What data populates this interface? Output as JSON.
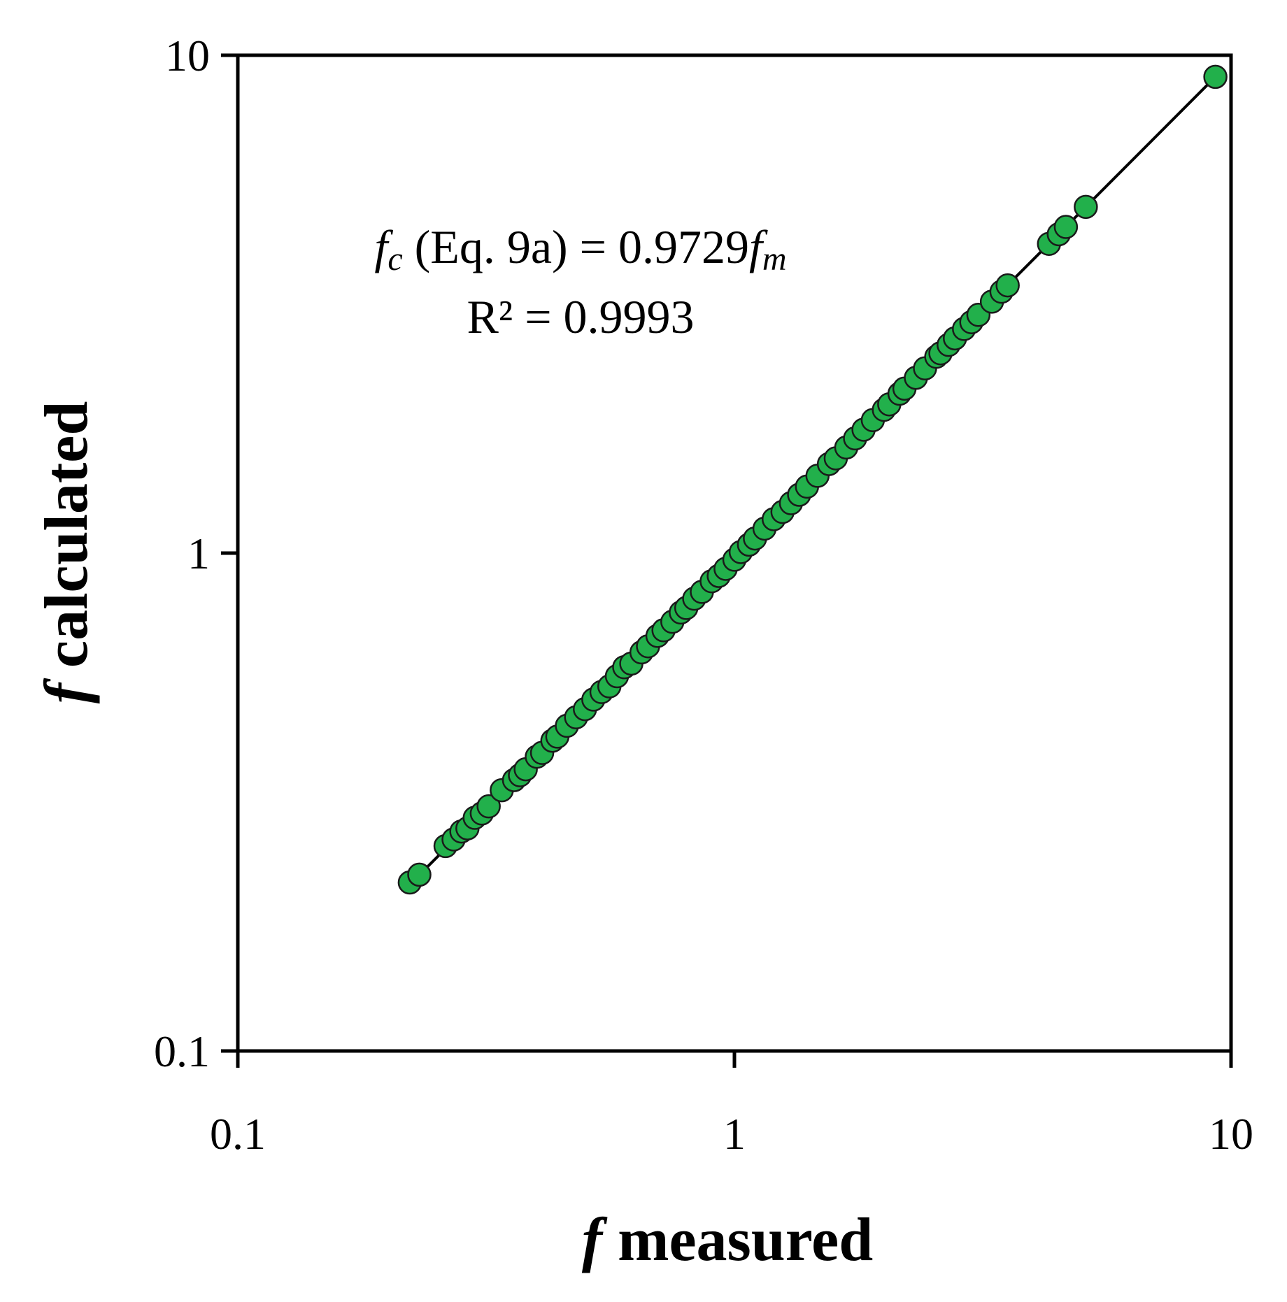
{
  "chart_data": {
    "type": "scatter",
    "x_scale": "log",
    "y_scale": "log",
    "xlim": [
      0.1,
      10
    ],
    "ylim": [
      0.1,
      10
    ],
    "x_ticks": [
      "0.1",
      "1",
      "10"
    ],
    "y_ticks": [
      "0.1",
      "1",
      "10"
    ],
    "xlabel_symbol": "f",
    "xlabel_text": "measured",
    "ylabel_symbol": "f",
    "ylabel_text": "calculated",
    "grid": false,
    "legend": "none",
    "marker_color": "#22b04b",
    "marker_edge_color": "#1a1a1a",
    "fit_line": {
      "slope": 0.9729,
      "color": "#000000",
      "x_range": [
        0.22,
        9.3
      ]
    },
    "annotation": {
      "lhs_symbol": "f",
      "lhs_subscript": "c",
      "middle": " (Eq. 9a) = 0.9729",
      "rhs_symbol": "f",
      "rhs_subscript": "m",
      "r2": "R² = 0.9993"
    },
    "series": [
      {
        "x": [
          0.222,
          0.232,
          0.262,
          0.272,
          0.282,
          0.29,
          0.3,
          0.31,
          0.32,
          0.34,
          0.36,
          0.37,
          0.38,
          0.4,
          0.41,
          0.43,
          0.44,
          0.46,
          0.48,
          0.5,
          0.52,
          0.54,
          0.56,
          0.58,
          0.6,
          0.62,
          0.65,
          0.67,
          0.7,
          0.72,
          0.75,
          0.78,
          0.8,
          0.83,
          0.86,
          0.9,
          0.93,
          0.96,
          1.0,
          1.03,
          1.07,
          1.1,
          1.15,
          1.2,
          1.25,
          1.3,
          1.35,
          1.4,
          1.47,
          1.55,
          1.6,
          1.68,
          1.75,
          1.82,
          1.9,
          2.0,
          2.05,
          2.15,
          2.2,
          2.32,
          2.42,
          2.55,
          2.6,
          2.7,
          2.78,
          2.9,
          3.0,
          3.1,
          3.3,
          3.45,
          3.55,
          4.3,
          4.5,
          4.65,
          5.1,
          9.3
        ],
        "y": [
          0.218,
          0.226,
          0.258,
          0.266,
          0.276,
          0.28,
          0.294,
          0.3,
          0.31,
          0.334,
          0.35,
          0.358,
          0.368,
          0.39,
          0.397,
          0.42,
          0.428,
          0.45,
          0.468,
          0.486,
          0.508,
          0.526,
          0.54,
          0.566,
          0.59,
          0.6,
          0.632,
          0.65,
          0.682,
          0.7,
          0.728,
          0.76,
          0.776,
          0.81,
          0.836,
          0.878,
          0.9,
          0.93,
          0.97,
          1.005,
          1.04,
          1.07,
          1.12,
          1.17,
          1.21,
          1.26,
          1.31,
          1.36,
          1.43,
          1.51,
          1.55,
          1.63,
          1.7,
          1.77,
          1.85,
          1.94,
          1.99,
          2.09,
          2.14,
          2.25,
          2.35,
          2.48,
          2.52,
          2.62,
          2.7,
          2.82,
          2.91,
          3.01,
          3.2,
          3.35,
          3.45,
          4.18,
          4.37,
          4.52,
          4.96,
          9.05
        ]
      }
    ]
  }
}
